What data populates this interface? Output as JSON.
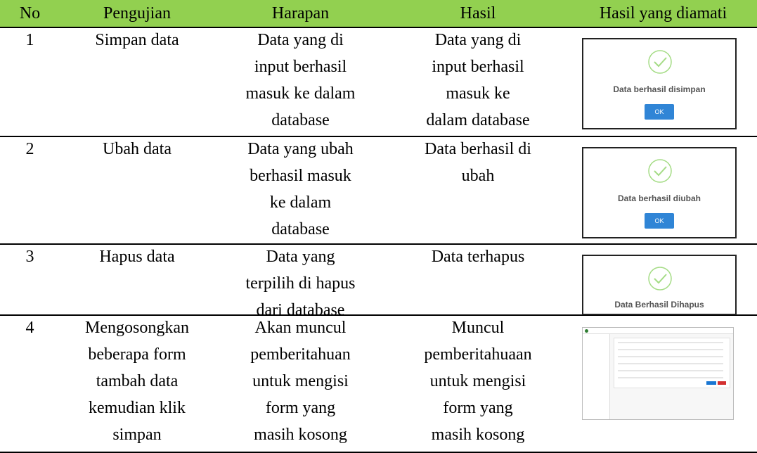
{
  "table": {
    "headers": [
      "No",
      "Pengujian",
      "Harapan",
      "Hasil",
      "Hasil yang diamati"
    ],
    "rows": [
      {
        "cells": [
          [
            "1"
          ],
          [
            "Simpan data"
          ],
          [
            "Data yang di",
            "input berhasil",
            "masuk ke dalam",
            "database"
          ],
          [
            "Data yang di",
            "input berhasil",
            "masuk ke",
            "dalam database"
          ]
        ],
        "dialog": {
          "message": "Data berhasil disimpan",
          "button": "OK"
        }
      },
      {
        "cells": [
          [
            "2"
          ],
          [
            "Ubah data"
          ],
          [
            "Data yang ubah",
            "berhasil masuk",
            "ke dalam",
            "database"
          ],
          [
            "Data berhasil di",
            "ubah"
          ]
        ],
        "dialog": {
          "message": "Data berhasil diubah",
          "button": "OK"
        }
      },
      {
        "cells": [
          [
            "3"
          ],
          [
            "Hapus data"
          ],
          [
            "Data yang",
            "terpilih di hapus",
            "dari database"
          ],
          [
            "Data terhapus"
          ]
        ],
        "dialog": {
          "message": "Data Berhasil Dihapus"
        }
      },
      {
        "cells": [
          [
            "4"
          ],
          [
            "Mengosongkan",
            "beberapa form",
            "tambah data",
            "kemudian klik",
            "simpan"
          ],
          [
            "Akan muncul",
            "pemberitahuan",
            "untuk mengisi",
            "form yang",
            "masih kosong"
          ],
          [
            "Muncul",
            "pemberitahuaan",
            "untuk mengisi",
            "form yang",
            "masih kosong"
          ]
        ]
      }
    ]
  }
}
